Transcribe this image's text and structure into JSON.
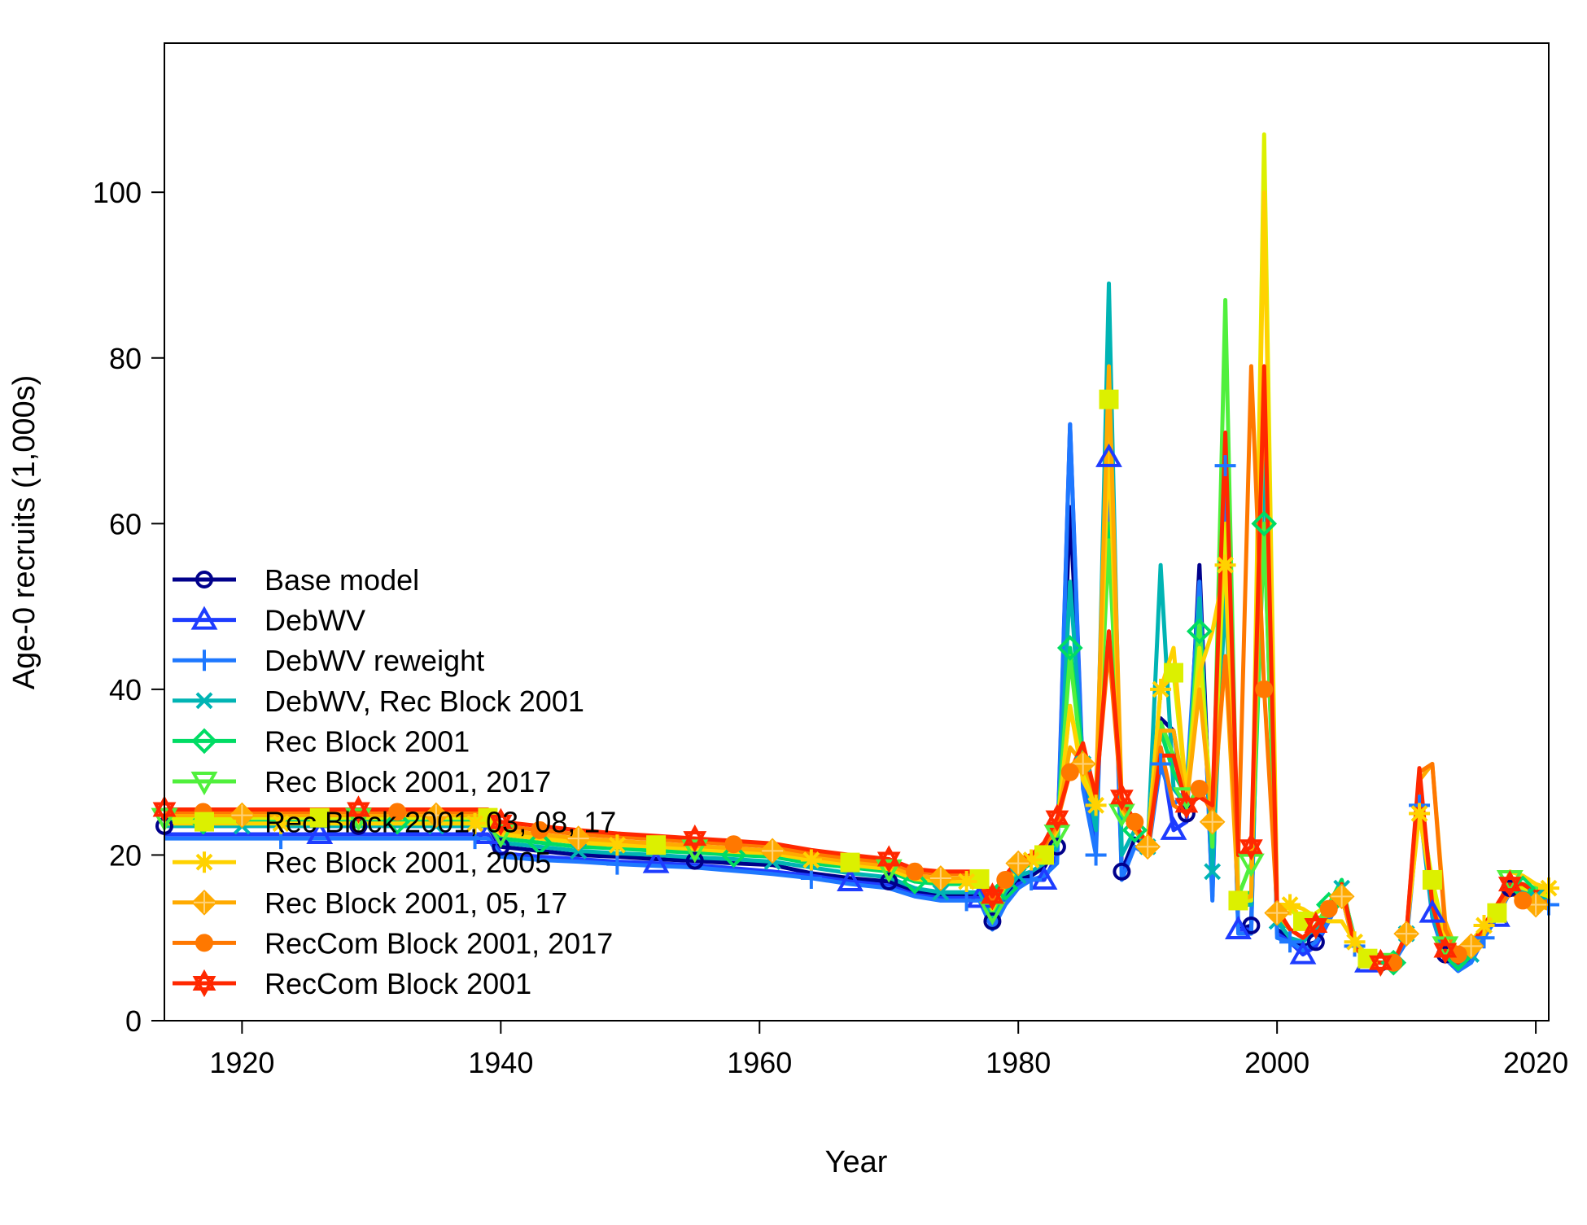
{
  "chart_data": {
    "type": "line",
    "title": "",
    "xlabel": "Year",
    "ylabel": "Age-0 recruits (1,000s)",
    "xlim": [
      1914,
      2021
    ],
    "ylim": [
      0,
      118
    ],
    "xticks": [
      1920,
      1940,
      1960,
      1980,
      2000,
      2020
    ],
    "yticks": [
      0,
      20,
      40,
      60,
      80,
      100
    ],
    "grid": false,
    "legend_position": "left",
    "x": [
      1914,
      1917,
      1920,
      1923,
      1926,
      1929,
      1932,
      1935,
      1938,
      1939,
      1940,
      1943,
      1946,
      1949,
      1952,
      1955,
      1958,
      1961,
      1964,
      1967,
      1970,
      1972,
      1974,
      1976,
      1977,
      1978,
      1979,
      1980,
      1981,
      1982,
      1983,
      1984,
      1985,
      1986,
      1987,
      1988,
      1989,
      1990,
      1991,
      1992,
      1993,
      1994,
      1995,
      1996,
      1997,
      1998,
      1999,
      2000,
      2001,
      2002,
      2003,
      2004,
      2005,
      2006,
      2007,
      2008,
      2009,
      2010,
      2011,
      2012,
      2013,
      2014,
      2015,
      2016,
      2017,
      2018,
      2019,
      2020,
      2021
    ],
    "series": [
      {
        "name": "Base model",
        "color": "#00008B",
        "marker": "circle",
        "values": [
          23.5,
          23.5,
          23.5,
          23.5,
          23.5,
          23.5,
          23.5,
          23.5,
          23.5,
          23.5,
          21,
          20.5,
          20,
          19.8,
          19.5,
          19.3,
          19,
          18.8,
          17.8,
          17.2,
          16.8,
          15.5,
          15.2,
          15.2,
          15.2,
          12,
          15,
          17,
          17.5,
          18.5,
          21,
          62,
          30,
          22,
          70,
          18,
          22,
          21,
          36.5,
          35,
          25,
          55,
          17,
          70,
          11,
          11.5,
          76,
          11,
          10,
          9,
          9.5,
          13,
          16,
          9.5,
          7,
          7,
          7,
          10,
          28.5,
          14,
          8,
          6.5,
          8,
          11,
          13,
          16,
          15.5,
          15,
          14.5
        ]
      },
      {
        "name": "DebWV",
        "color": "#1E3CFF",
        "marker": "triangle",
        "values": [
          22.5,
          22.5,
          22.5,
          22.5,
          22.5,
          22.5,
          22.5,
          22.5,
          22.5,
          22.5,
          20.2,
          19.8,
          19.5,
          19.2,
          19,
          18.8,
          18.4,
          18,
          17.5,
          16.8,
          16.3,
          15.2,
          14.8,
          14.8,
          14.8,
          11.5,
          14.5,
          16.5,
          17,
          17,
          20,
          72,
          29,
          21,
          68,
          17.5,
          21,
          20,
          33,
          23,
          24,
          52,
          15,
          68,
          11,
          11,
          75,
          10.5,
          9.5,
          8,
          9,
          12,
          15,
          9,
          7,
          7,
          7,
          10,
          27,
          13,
          7.5,
          6,
          7.5,
          10,
          12.5,
          16,
          15,
          14.5,
          14.5
        ]
      },
      {
        "name": "DebWV reweight",
        "color": "#1E78FF",
        "marker": "plus",
        "values": [
          22,
          22,
          22,
          22,
          22,
          22,
          22,
          22,
          22,
          22,
          19.8,
          19.4,
          19.2,
          18.9,
          18.7,
          18.5,
          18.1,
          17.7,
          17.2,
          16.5,
          16,
          15,
          14.5,
          14.5,
          14.5,
          11,
          14,
          16,
          17,
          17.5,
          19,
          72,
          28,
          20,
          67,
          17,
          21,
          20,
          31,
          26,
          28,
          53,
          14.5,
          67,
          10.5,
          10.5,
          74,
          10,
          9.5,
          8.5,
          9.5,
          12,
          15,
          9,
          7,
          7,
          7,
          9.5,
          26,
          12.5,
          7.5,
          6,
          7,
          10,
          12.5,
          15.5,
          15,
          14.5,
          14
        ]
      },
      {
        "name": "DebWV, Rec Block 2001",
        "color": "#00B4B4",
        "marker": "x",
        "values": [
          23.5,
          23.5,
          23.5,
          23.5,
          23.5,
          23.5,
          23.5,
          23.5,
          23.5,
          23.5,
          21.5,
          21,
          20.5,
          20.2,
          20,
          19.7,
          19.5,
          19.2,
          18.5,
          17.8,
          17.3,
          16,
          15.5,
          15.5,
          15.5,
          12.5,
          15.5,
          17.5,
          18,
          19,
          21,
          53,
          31,
          23,
          89,
          20,
          23,
          21,
          55,
          28,
          26,
          51,
          18,
          52,
          14,
          14,
          70,
          12,
          10,
          9.5,
          11,
          14,
          16,
          10,
          7.5,
          7,
          7,
          10.5,
          26,
          13,
          8,
          6.5,
          8,
          11,
          13.5,
          16,
          15.5,
          15,
          14.5
        ]
      },
      {
        "name": "Rec Block 2001",
        "color": "#00DC64",
        "marker": "diamond",
        "values": [
          24,
          24,
          24,
          24,
          24,
          24,
          24,
          24,
          24,
          24,
          22,
          21.5,
          21,
          20.8,
          20.5,
          20.3,
          20,
          19.8,
          19,
          18.5,
          18,
          16.8,
          16.5,
          16.5,
          16.5,
          13,
          16,
          18,
          19,
          19.5,
          22,
          45,
          31.5,
          26,
          60,
          25,
          23,
          21,
          35,
          30,
          27,
          47,
          22,
          60,
          15,
          15.5,
          60,
          12.5,
          11,
          10,
          11.5,
          14,
          17,
          9,
          7.5,
          7,
          7,
          10.5,
          27,
          15,
          9,
          7.5,
          9.5,
          11,
          13,
          16.5,
          16,
          15.5,
          15
        ]
      },
      {
        "name": "Rec Block 2001, 2017",
        "color": "#50F03C",
        "marker": "triangle-down",
        "values": [
          24.5,
          24.5,
          24.5,
          24.5,
          24.5,
          24.5,
          24.5,
          24.5,
          24.5,
          24.5,
          22.5,
          22,
          21.5,
          21.2,
          21,
          20.7,
          20.4,
          20.2,
          19.4,
          18.8,
          18.3,
          17.1,
          16.8,
          16.8,
          16.8,
          13.2,
          16.2,
          18.3,
          19.2,
          19.8,
          22.5,
          44,
          30,
          26,
          58,
          25,
          23,
          21,
          36,
          32,
          27,
          48,
          21,
          87,
          15,
          19,
          60,
          13,
          11,
          10,
          11.5,
          14,
          16.5,
          9.5,
          7.5,
          7,
          7,
          10.5,
          28,
          16,
          9,
          7.5,
          9.5,
          11.5,
          13.5,
          17,
          16.5,
          16,
          15.5
        ]
      },
      {
        "name": "Rec Block 2001, 03, 08, 17",
        "color": "#DCF000",
        "marker": "square",
        "values": [
          24.5,
          24.5,
          24.5,
          24.5,
          24.5,
          24.5,
          24.5,
          24.5,
          24.5,
          24.5,
          22.8,
          22.3,
          21.8,
          21.5,
          21.2,
          21,
          20.7,
          20.4,
          19.7,
          19.1,
          18.6,
          17.4,
          17.1,
          17.1,
          17.1,
          13.5,
          16.5,
          18.6,
          19.5,
          20,
          23,
          38,
          30,
          26.5,
          75,
          25.5,
          23.5,
          21.5,
          40,
          42,
          27,
          45,
          24,
          60,
          14.5,
          14.5,
          107,
          14,
          13.5,
          12,
          13,
          14,
          15,
          10,
          7.5,
          7,
          7,
          10.5,
          26,
          17,
          10,
          8,
          9.5,
          11.5,
          13,
          16.5,
          16,
          15.5,
          15
        ]
      },
      {
        "name": "Rec Block 2001, 2005",
        "color": "#FFD200",
        "marker": "star",
        "values": [
          23.8,
          23.8,
          23.8,
          23.8,
          23.8,
          23.8,
          23.8,
          23.8,
          23.8,
          23.8,
          22.5,
          22,
          21.5,
          21.2,
          21,
          20.7,
          20.4,
          20.2,
          19.4,
          18.8,
          18.3,
          17.1,
          16.8,
          16.8,
          16.8,
          13.6,
          16.6,
          18.6,
          19.4,
          20,
          23,
          38,
          29,
          26,
          70,
          25.5,
          23,
          21.5,
          40,
          45,
          27,
          42,
          47,
          55,
          15,
          15,
          100,
          14,
          14,
          13.5,
          12.5,
          12,
          12,
          9.5,
          7.5,
          7,
          7,
          10.5,
          25,
          15,
          9.5,
          7.5,
          9.5,
          11.5,
          13,
          18,
          17.5,
          16.5,
          16
        ]
      },
      {
        "name": "Rec Block 2001, 05, 17",
        "color": "#FFAA00",
        "marker": "diamond-plus",
        "values": [
          24.8,
          24.8,
          24.8,
          24.8,
          24.8,
          24.8,
          24.8,
          24.8,
          24.8,
          24.8,
          23,
          22.5,
          22,
          21.7,
          21.4,
          21.1,
          20.8,
          20.5,
          19.8,
          19.2,
          18.7,
          17.5,
          17.2,
          17.2,
          17.2,
          14,
          17,
          19,
          20,
          20.5,
          23.5,
          33,
          31,
          27,
          79,
          26,
          23,
          21,
          35,
          35,
          26,
          40,
          24,
          44,
          14.5,
          15,
          78,
          13,
          11,
          10,
          11.5,
          13,
          15,
          9,
          7,
          7,
          7,
          10.5,
          29,
          31,
          12,
          8,
          9,
          10.5,
          13,
          15.5,
          15,
          14,
          13.5
        ]
      },
      {
        "name": "RecCom Block 2001, 2017",
        "color": "#FF7800",
        "marker": "dot",
        "values": [
          25.2,
          25.2,
          25.2,
          25.2,
          25.2,
          25.2,
          25.2,
          25.2,
          25.2,
          25.2,
          23.5,
          23,
          22.5,
          22.2,
          21.9,
          21.6,
          21.3,
          21,
          20.2,
          19.6,
          19.1,
          18,
          17.7,
          17.7,
          17.7,
          14.5,
          17,
          19,
          20,
          21,
          24,
          30,
          32,
          27.5,
          45,
          26,
          24,
          20,
          33,
          26,
          25,
          28,
          25,
          44,
          20,
          79,
          40,
          13.5,
          11,
          10,
          11.5,
          13.5,
          16,
          9,
          7,
          7,
          7,
          10.5,
          30,
          31,
          11,
          8,
          9,
          11,
          13.5,
          15.5,
          14.5,
          14,
          14.5
        ]
      },
      {
        "name": "RecCom Block 2001",
        "color": "#FF2800",
        "marker": "hexstar",
        "values": [
          25.5,
          25.5,
          25.5,
          25.5,
          25.5,
          25.5,
          25.5,
          25.5,
          25.5,
          25.5,
          24,
          23.5,
          23,
          22.6,
          22.3,
          22,
          21.7,
          21.4,
          20.6,
          20,
          19.5,
          18.3,
          18,
          18,
          18,
          15,
          17.5,
          19.5,
          20,
          21.5,
          24.5,
          30,
          33.5,
          27,
          47,
          27,
          24,
          21,
          32,
          32,
          26,
          27,
          26,
          71,
          20,
          21,
          79,
          13.5,
          11,
          10,
          11.5,
          13,
          16.5,
          9,
          7,
          7,
          7,
          10.5,
          30.5,
          14,
          8.5,
          7,
          9,
          11.5,
          14,
          16.5,
          16.5,
          15.5,
          16
        ]
      }
    ]
  }
}
